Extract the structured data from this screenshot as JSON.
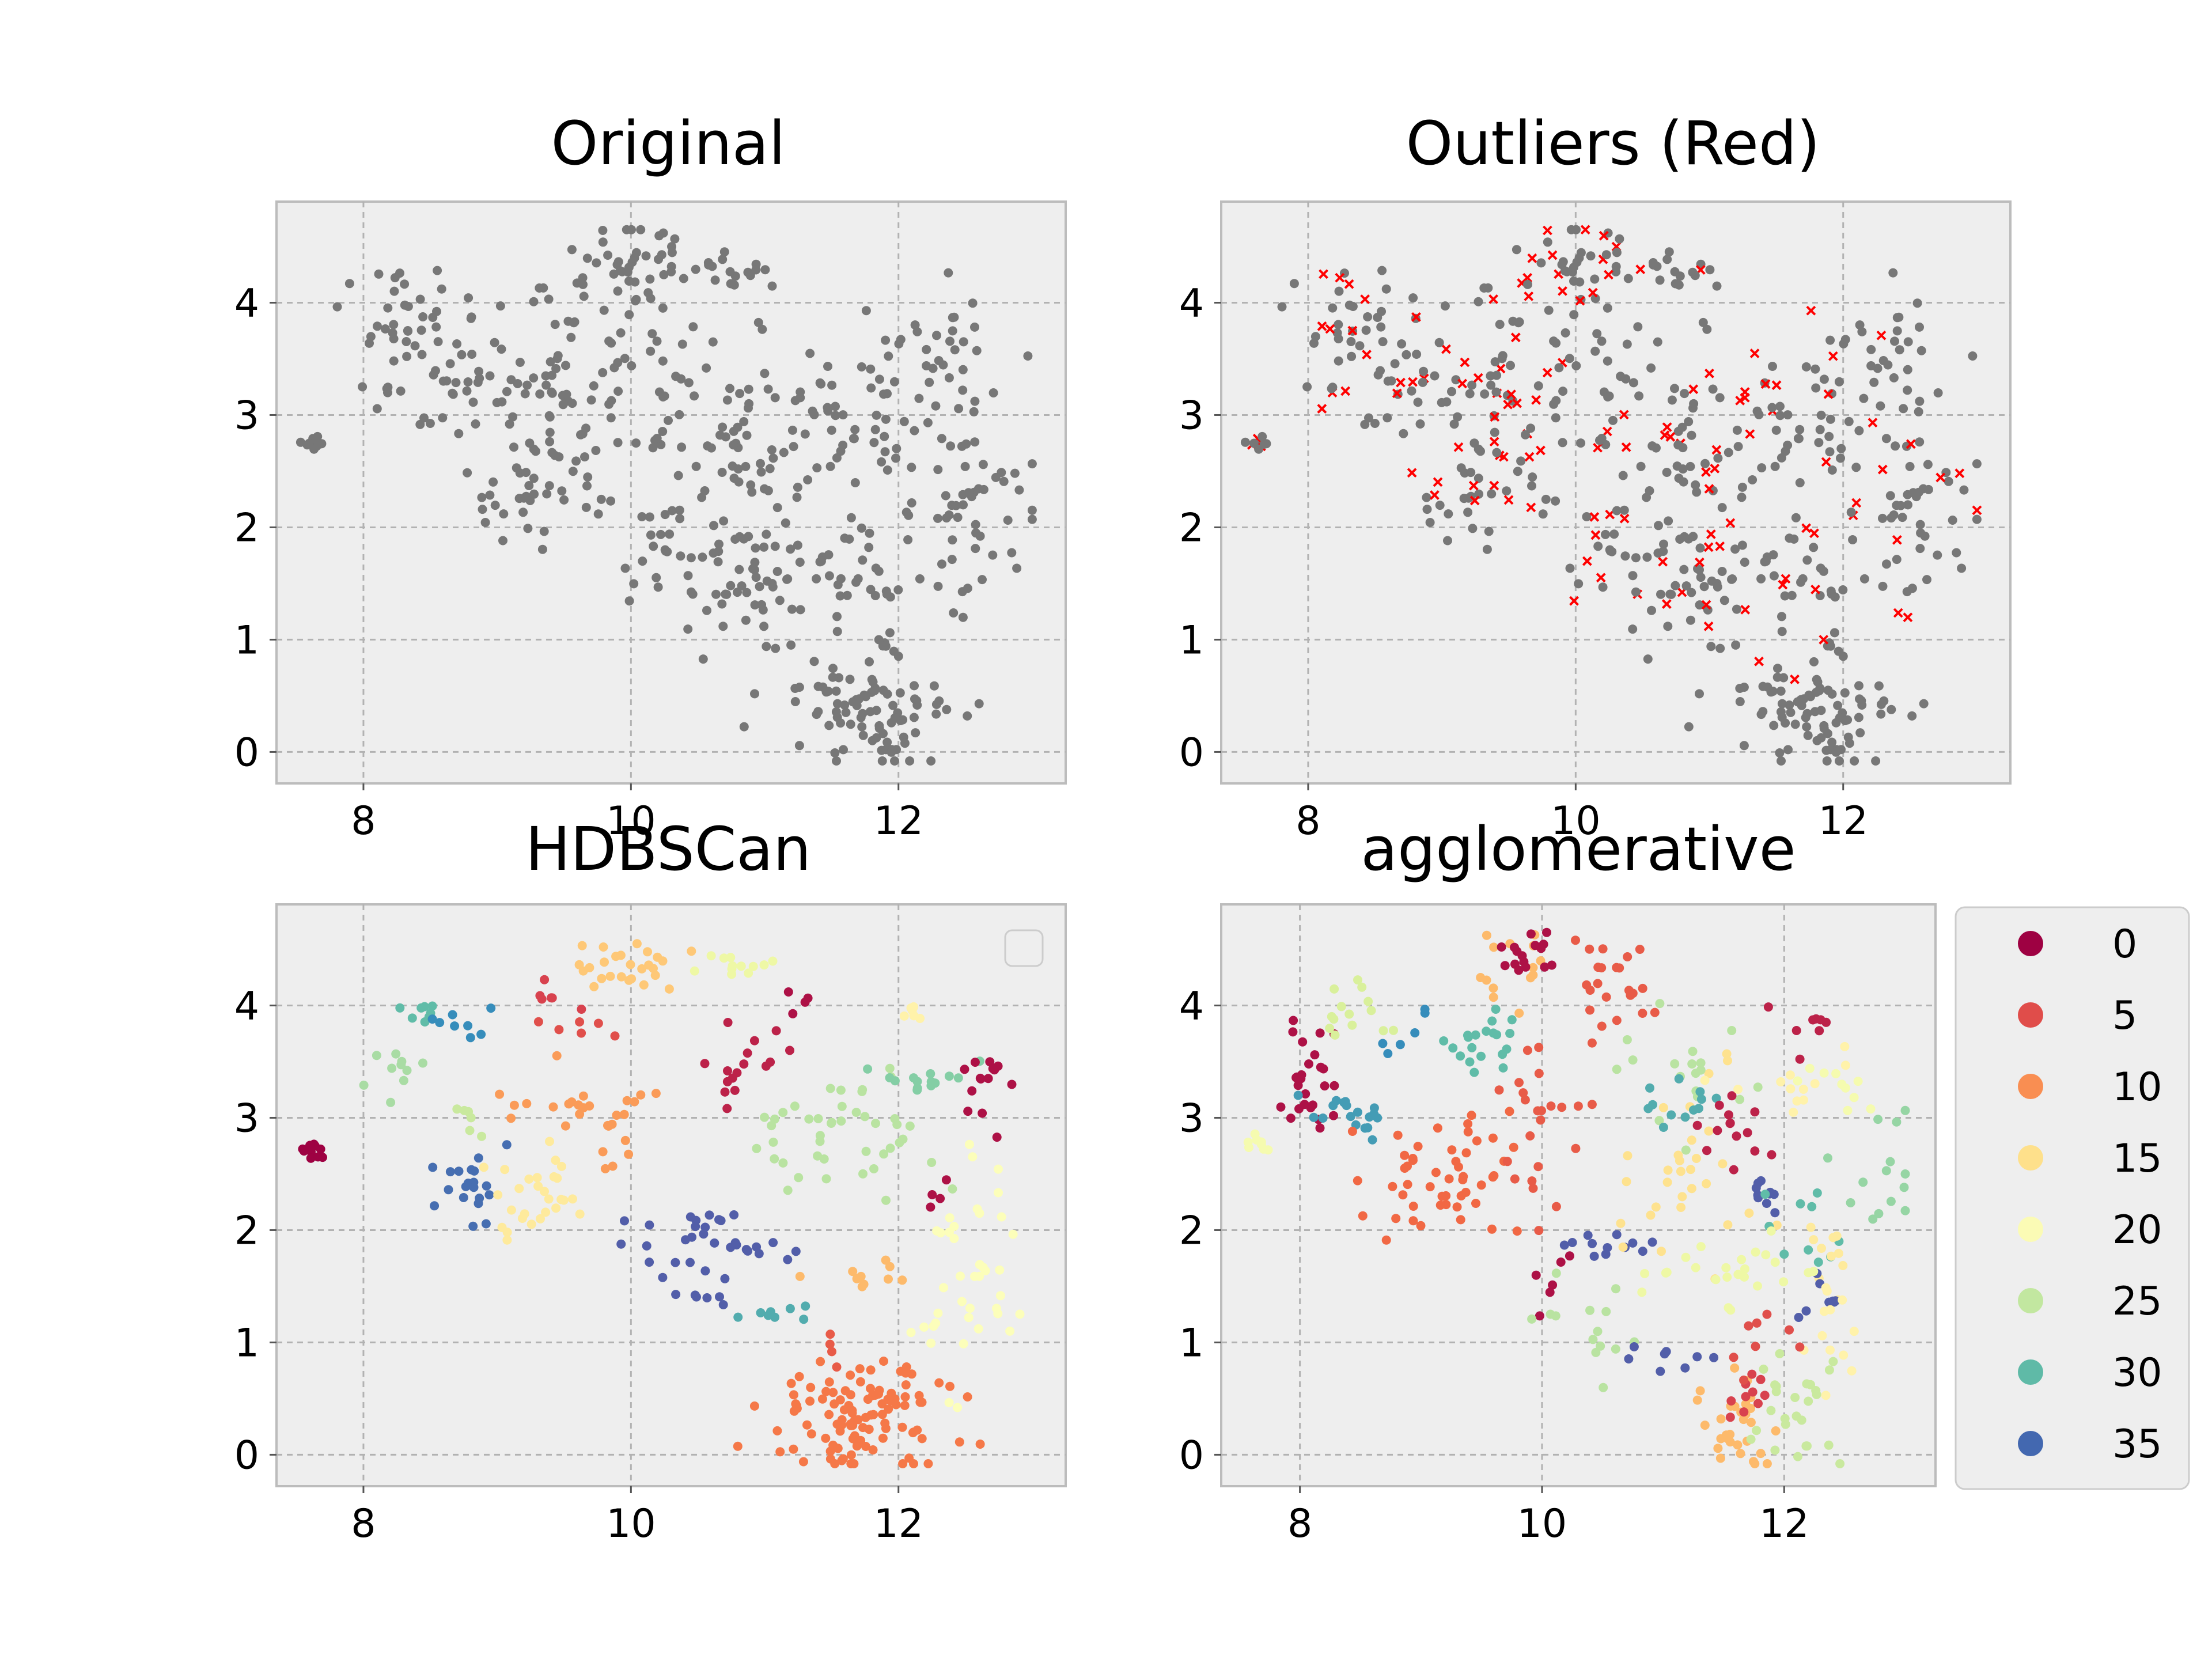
{
  "figure": {
    "background": "#ffffff"
  },
  "style": {
    "axes_facecolor": "#eeeeee",
    "spine_color": "#bcbcbc",
    "grid_color": "#b2b2b2",
    "point_gray": "#777777",
    "outlier_red": "#ff0000"
  },
  "chart_data": [
    {
      "id": "original",
      "type": "scatter",
      "title": "Original",
      "xlabel": "",
      "ylabel": "",
      "xlim": [
        7.35,
        13.25
      ],
      "ylim": [
        -0.28,
        4.9
      ],
      "xticks": [
        8,
        10,
        12
      ],
      "yticks": [
        0,
        1,
        2,
        3,
        4
      ],
      "grid": true,
      "points_ref": "base"
    },
    {
      "id": "outliers",
      "type": "scatter",
      "title": "Outliers (Red)",
      "xlabel": "",
      "ylabel": "",
      "xlim": [
        7.35,
        13.25
      ],
      "ylim": [
        -0.28,
        4.9
      ],
      "xticks": [
        8,
        10,
        12
      ],
      "yticks": [
        0,
        1,
        2,
        3,
        4
      ],
      "grid": true,
      "points_ref": "base",
      "outlier_marker": "x"
    },
    {
      "id": "hdbscan",
      "type": "scatter",
      "title": "HDBSCan",
      "xlabel": "",
      "ylabel": "",
      "xlim": [
        7.35,
        13.25
      ],
      "ylim": [
        -0.28,
        4.9
      ],
      "xticks": [
        8,
        10,
        12
      ],
      "yticks": [
        0,
        1,
        2,
        3,
        4
      ],
      "grid": true,
      "legend": {
        "placement": "upper-right",
        "entries": []
      },
      "colormap": "Spectral",
      "clusters": [
        {
          "cx": 7.62,
          "cy": 2.72,
          "sx": 0.06,
          "sy": 0.06,
          "n": 10,
          "label": 0
        },
        {
          "cx": 8.45,
          "cy": 3.95,
          "sx": 0.12,
          "sy": 0.1,
          "n": 8,
          "label": 30
        },
        {
          "cx": 8.8,
          "cy": 3.88,
          "sx": 0.15,
          "sy": 0.1,
          "n": 8,
          "label": 33
        },
        {
          "cx": 8.2,
          "cy": 3.4,
          "sx": 0.12,
          "sy": 0.1,
          "n": 10,
          "label": 26
        },
        {
          "cx": 8.8,
          "cy": 2.95,
          "sx": 0.1,
          "sy": 0.1,
          "n": 6,
          "label": 24
        },
        {
          "cx": 8.8,
          "cy": 2.45,
          "sx": 0.15,
          "sy": 0.25,
          "n": 20,
          "label": 35
        },
        {
          "cx": 9.35,
          "cy": 2.3,
          "sx": 0.18,
          "sy": 0.2,
          "n": 28,
          "label": 16
        },
        {
          "cx": 9.6,
          "cy": 3.1,
          "sx": 0.35,
          "sy": 0.12,
          "n": 22,
          "label": 10
        },
        {
          "cx": 9.9,
          "cy": 2.75,
          "sx": 0.1,
          "sy": 0.12,
          "n": 6,
          "label": 10
        },
        {
          "cx": 9.45,
          "cy": 4.08,
          "sx": 0.12,
          "sy": 0.05,
          "n": 6,
          "label": 4
        },
        {
          "cx": 9.7,
          "cy": 3.82,
          "sx": 0.18,
          "sy": 0.04,
          "n": 6,
          "label": 5
        },
        {
          "cx": 9.95,
          "cy": 4.35,
          "sx": 0.25,
          "sy": 0.15,
          "n": 26,
          "label": 13
        },
        {
          "cx": 10.8,
          "cy": 4.35,
          "sx": 0.12,
          "sy": 0.06,
          "n": 12,
          "label": 21
        },
        {
          "cx": 10.85,
          "cy": 3.45,
          "sx": 0.2,
          "sy": 0.18,
          "n": 16,
          "label": 2
        },
        {
          "cx": 11.25,
          "cy": 3.95,
          "sx": 0.1,
          "sy": 0.08,
          "n": 4,
          "label": 1
        },
        {
          "cx": 11.55,
          "cy": 2.9,
          "sx": 0.4,
          "sy": 0.3,
          "n": 44,
          "label": 25
        },
        {
          "cx": 12.15,
          "cy": 3.35,
          "sx": 0.25,
          "sy": 0.08,
          "n": 14,
          "label": 28
        },
        {
          "cx": 12.1,
          "cy": 3.95,
          "sx": 0.08,
          "sy": 0.05,
          "n": 6,
          "label": 17
        },
        {
          "cx": 12.75,
          "cy": 3.3,
          "sx": 0.12,
          "sy": 0.2,
          "n": 14,
          "label": 1
        },
        {
          "cx": 12.35,
          "cy": 2.35,
          "sx": 0.08,
          "sy": 0.12,
          "n": 4,
          "label": 1
        },
        {
          "cx": 10.5,
          "cy": 1.85,
          "sx": 0.35,
          "sy": 0.18,
          "n": 32,
          "label": 36
        },
        {
          "cx": 10.55,
          "cy": 1.38,
          "sx": 0.2,
          "sy": 0.05,
          "n": 6,
          "label": 36
        },
        {
          "cx": 11.05,
          "cy": 1.3,
          "sx": 0.2,
          "sy": 0.06,
          "n": 8,
          "label": 31
        },
        {
          "cx": 11.75,
          "cy": 1.6,
          "sx": 0.2,
          "sy": 0.08,
          "n": 10,
          "label": 12
        },
        {
          "cx": 12.55,
          "cy": 1.6,
          "sx": 0.25,
          "sy": 0.5,
          "n": 40,
          "label": 19
        },
        {
          "cx": 11.75,
          "cy": 0.3,
          "sx": 0.35,
          "sy": 0.25,
          "n": 110,
          "label": 8
        },
        {
          "cx": 11.55,
          "cy": 0.88,
          "sx": 0.1,
          "sy": 0.08,
          "n": 4,
          "label": 6
        }
      ]
    },
    {
      "id": "agglomerative",
      "type": "scatter",
      "title": "agglomerative",
      "xlabel": "",
      "ylabel": "",
      "xlim": [
        7.35,
        13.25
      ],
      "ylim": [
        -0.28,
        4.9
      ],
      "xticks": [
        8,
        10,
        12
      ],
      "yticks": [
        0,
        1,
        2,
        3,
        4
      ],
      "grid": true,
      "colormap": "Spectral",
      "legend": {
        "placement": "outside-right",
        "entries": [
          {
            "label": "0",
            "color": "#9e0142"
          },
          {
            "label": "5",
            "color": "#e04d4a"
          },
          {
            "label": "10",
            "color": "#f98e52"
          },
          {
            "label": "15",
            "color": "#fee08b"
          },
          {
            "label": "20",
            "color": "#fbfbb5"
          },
          {
            "label": "25",
            "color": "#c2e7a0"
          },
          {
            "label": "30",
            "color": "#5fbaa7"
          },
          {
            "label": "35",
            "color": "#4368b0"
          }
        ]
      },
      "clusters": [
        {
          "cx": 8.1,
          "cy": 3.35,
          "sx": 0.12,
          "sy": 0.25,
          "n": 26,
          "label": 1
        },
        {
          "cx": 7.65,
          "cy": 2.75,
          "sx": 0.06,
          "sy": 0.06,
          "n": 8,
          "label": 20
        },
        {
          "cx": 8.45,
          "cy": 3.95,
          "sx": 0.15,
          "sy": 0.1,
          "n": 14,
          "label": 23
        },
        {
          "cx": 8.5,
          "cy": 3.1,
          "sx": 0.2,
          "sy": 0.12,
          "n": 18,
          "label": 32
        },
        {
          "cx": 8.85,
          "cy": 3.7,
          "sx": 0.1,
          "sy": 0.2,
          "n": 6,
          "label": 33
        },
        {
          "cx": 9.2,
          "cy": 2.4,
          "sx": 0.3,
          "sy": 0.3,
          "n": 50,
          "label": 7
        },
        {
          "cx": 9.45,
          "cy": 3.65,
          "sx": 0.25,
          "sy": 0.2,
          "n": 20,
          "label": 30
        },
        {
          "cx": 9.65,
          "cy": 4.3,
          "sx": 0.2,
          "sy": 0.15,
          "n": 14,
          "label": 12
        },
        {
          "cx": 9.9,
          "cy": 4.45,
          "sx": 0.15,
          "sy": 0.12,
          "n": 16,
          "label": 1
        },
        {
          "cx": 10.55,
          "cy": 4.2,
          "sx": 0.2,
          "sy": 0.2,
          "n": 22,
          "label": 6
        },
        {
          "cx": 10.05,
          "cy": 3.1,
          "sx": 0.25,
          "sy": 0.4,
          "n": 24,
          "label": 6
        },
        {
          "cx": 10.6,
          "cy": 1.88,
          "sx": 0.2,
          "sy": 0.05,
          "n": 12,
          "label": 36
        },
        {
          "cx": 10.1,
          "cy": 1.6,
          "sx": 0.1,
          "sy": 0.12,
          "n": 6,
          "label": 1
        },
        {
          "cx": 10.3,
          "cy": 1.15,
          "sx": 0.2,
          "sy": 0.2,
          "n": 14,
          "label": 25
        },
        {
          "cx": 11.2,
          "cy": 2.6,
          "sx": 0.3,
          "sy": 0.5,
          "n": 30,
          "label": 15
        },
        {
          "cx": 11.0,
          "cy": 3.5,
          "sx": 0.3,
          "sy": 0.3,
          "n": 18,
          "label": 25
        },
        {
          "cx": 11.2,
          "cy": 3.1,
          "sx": 0.2,
          "sy": 0.1,
          "n": 12,
          "label": 31
        },
        {
          "cx": 11.6,
          "cy": 2.85,
          "sx": 0.15,
          "sy": 0.2,
          "n": 14,
          "label": 2
        },
        {
          "cx": 11.9,
          "cy": 2.3,
          "sx": 0.1,
          "sy": 0.1,
          "n": 10,
          "label": 36
        },
        {
          "cx": 12.25,
          "cy": 3.8,
          "sx": 0.15,
          "sy": 0.1,
          "n": 8,
          "label": 2
        },
        {
          "cx": 12.1,
          "cy": 3.3,
          "sx": 0.25,
          "sy": 0.15,
          "n": 12,
          "label": 17
        },
        {
          "cx": 12.55,
          "cy": 3.25,
          "sx": 0.2,
          "sy": 0.15,
          "n": 10,
          "label": 20
        },
        {
          "cx": 12.7,
          "cy": 2.3,
          "sx": 0.2,
          "sy": 0.3,
          "n": 14,
          "label": 27
        },
        {
          "cx": 12.1,
          "cy": 2.05,
          "sx": 0.2,
          "sy": 0.2,
          "n": 10,
          "label": 30
        },
        {
          "cx": 12.45,
          "cy": 1.8,
          "sx": 0.15,
          "sy": 0.15,
          "n": 10,
          "label": 16
        },
        {
          "cx": 12.3,
          "cy": 1.4,
          "sx": 0.12,
          "sy": 0.1,
          "n": 8,
          "label": 36
        },
        {
          "cx": 12.4,
          "cy": 1.15,
          "sx": 0.1,
          "sy": 0.25,
          "n": 12,
          "label": 17
        },
        {
          "cx": 11.4,
          "cy": 1.5,
          "sx": 0.4,
          "sy": 0.2,
          "n": 24,
          "label": 21
        },
        {
          "cx": 10.9,
          "cy": 0.85,
          "sx": 0.25,
          "sy": 0.08,
          "n": 8,
          "label": 36
        },
        {
          "cx": 11.65,
          "cy": 0.25,
          "sx": 0.15,
          "sy": 0.25,
          "n": 30,
          "label": 12
        },
        {
          "cx": 11.7,
          "cy": 0.65,
          "sx": 0.1,
          "sy": 0.15,
          "n": 10,
          "label": 4
        },
        {
          "cx": 12.1,
          "cy": 0.35,
          "sx": 0.2,
          "sy": 0.25,
          "n": 26,
          "label": 24
        },
        {
          "cx": 11.8,
          "cy": 1.0,
          "sx": 0.15,
          "sy": 0.2,
          "n": 8,
          "label": 5
        }
      ]
    }
  ]
}
